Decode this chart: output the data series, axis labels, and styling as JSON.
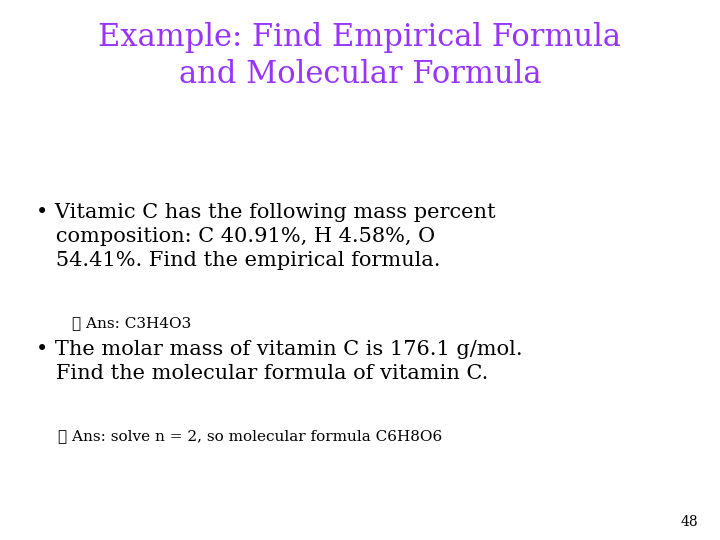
{
  "title_line1": "Example: Find Empirical Formula",
  "title_line2": "and Molecular Formula",
  "title_color": "#9933FF",
  "background_color": "#FFFFFF",
  "body_color": "#000000",
  "bullet1_line1": "Vitamic C has the following mass percent",
  "bullet1_line2": "composition: C 40.91%, H 4.58%, O",
  "bullet1_line3": "54.41%. Find the empirical formula.",
  "ans1": "✓ Ans: C3H4O3",
  "bullet2_line1": "The molar mass of vitamin C is 176.1 g/mol.",
  "bullet2_line2": "Find the molecular formula of vitamin C.",
  "ans2": "✓ Ans: solve n = 2, so molecular formula C6H8O6",
  "page_number": "48",
  "title_fontsize": 22,
  "bullet_fontsize": 15,
  "ans_fontsize": 11,
  "page_fontsize": 10
}
